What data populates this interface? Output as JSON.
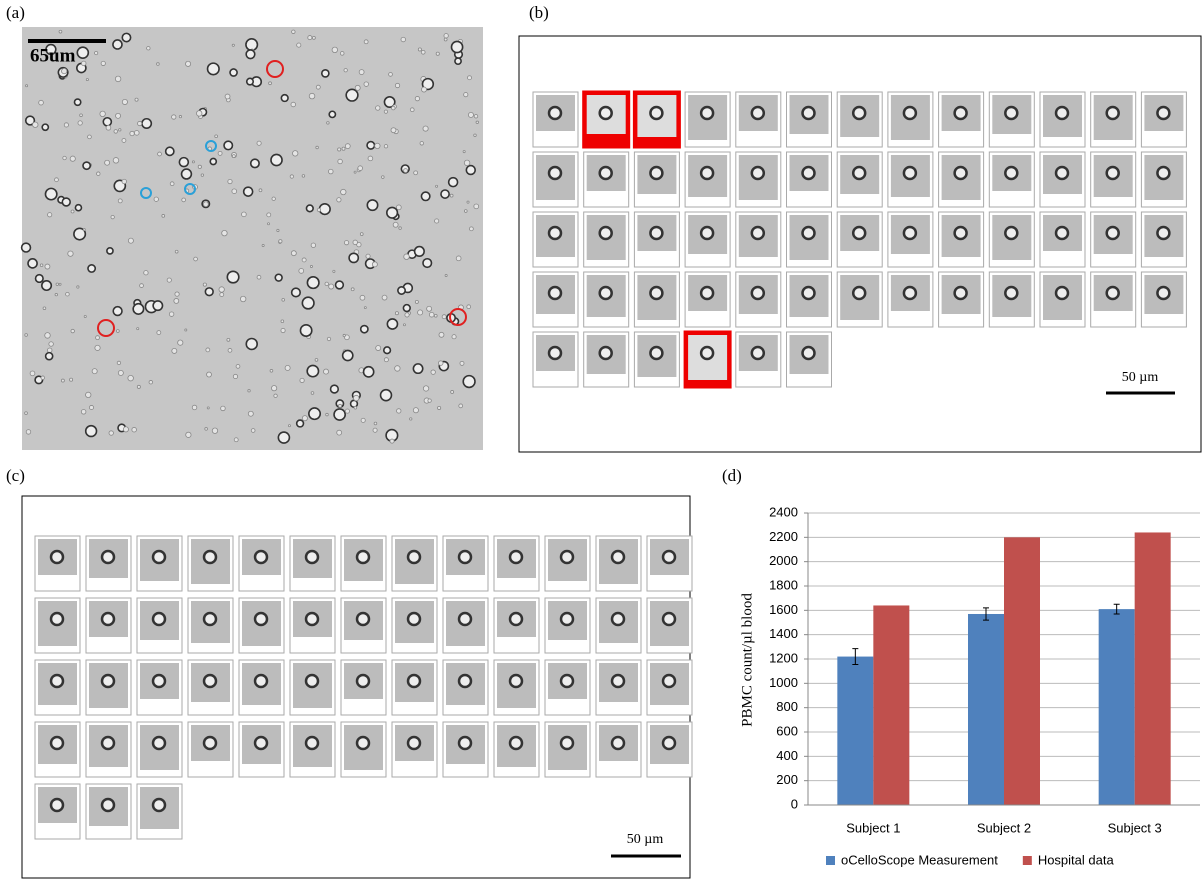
{
  "panels": {
    "a": {
      "label": "(a)",
      "scale": "65um"
    },
    "b": {
      "label": "(b)",
      "scale": "50 µm"
    },
    "c": {
      "label": "(c)",
      "scale": "50 µm"
    },
    "d": {
      "label": "(d)"
    }
  },
  "chart_data": {
    "type": "bar",
    "y_label": "PBMC count/µl blood",
    "categories": [
      "Subject 1",
      "Subject 2",
      "Subject 3"
    ],
    "series": [
      {
        "name": "oCelloScope Measurement",
        "color": "#4f81bd",
        "values": [
          1220,
          1570,
          1610
        ],
        "errors": [
          65,
          50,
          40
        ]
      },
      {
        "name": "Hospital data",
        "color": "#c0504d",
        "values": [
          1640,
          2200,
          2240
        ]
      }
    ],
    "ylim": [
      0,
      2400
    ],
    "yticks": [
      0,
      200,
      400,
      600,
      800,
      1000,
      1200,
      1400,
      1600,
      1800,
      2000,
      2200,
      2400
    ],
    "grid": true,
    "legend": "bottom"
  }
}
